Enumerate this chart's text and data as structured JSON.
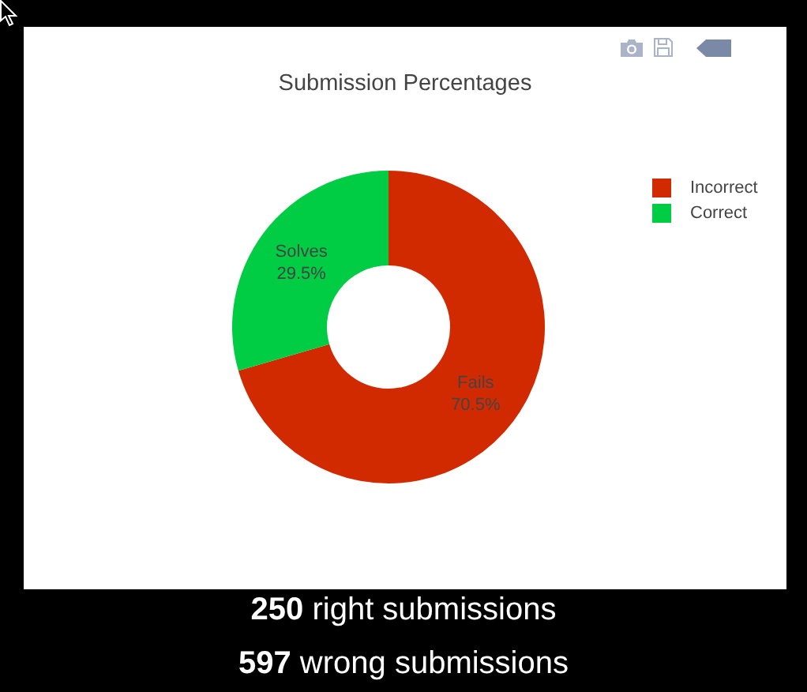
{
  "chart_data": {
    "type": "donut",
    "title": "Submission Percentages",
    "categories": [
      "Incorrect",
      "Correct"
    ],
    "values": [
      70.5,
      29.5
    ],
    "colors": [
      "#d12a00",
      "#00cc44"
    ],
    "value_labels": [
      "Fails 70.5%",
      "Solves 29.5%"
    ],
    "legend": "top right",
    "annotations": [
      "250 right submissions",
      "597 wrong submissions"
    ]
  }
}
